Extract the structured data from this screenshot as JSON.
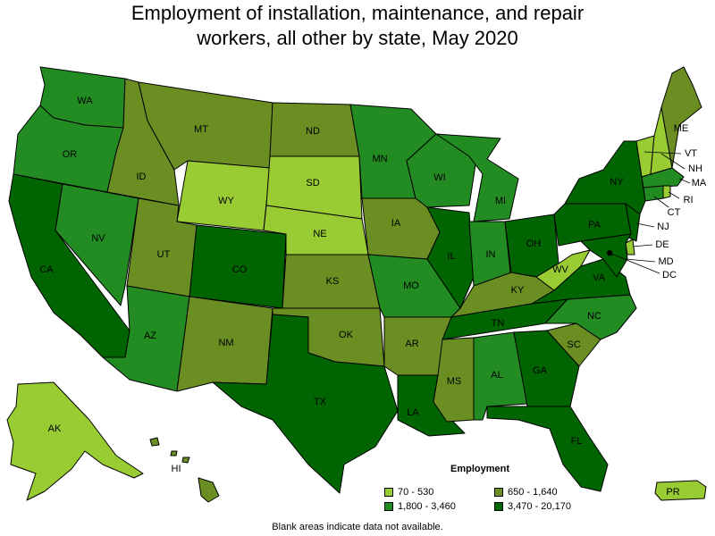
{
  "title_line1": "Employment of installation, maintenance, and repair",
  "title_line2": "workers, all other by state, May 2020",
  "legend": {
    "title": "Employment",
    "bins": [
      {
        "label": "70 - 530",
        "color": "#99cc33"
      },
      {
        "label": "650 - 1,640",
        "color": "#6b8e23"
      },
      {
        "label": "1,800 - 3,460",
        "color": "#228b22"
      },
      {
        "label": "3,470 - 20,170",
        "color": "#006400"
      }
    ]
  },
  "footnote": "Blank areas indicate data not available.",
  "states": [
    {
      "code": "WA",
      "bin": 2
    },
    {
      "code": "OR",
      "bin": 2
    },
    {
      "code": "CA",
      "bin": 3
    },
    {
      "code": "ID",
      "bin": 1
    },
    {
      "code": "NV",
      "bin": 2
    },
    {
      "code": "MT",
      "bin": 1
    },
    {
      "code": "WY",
      "bin": 0
    },
    {
      "code": "UT",
      "bin": 1
    },
    {
      "code": "AZ",
      "bin": 2
    },
    {
      "code": "CO",
      "bin": 3
    },
    {
      "code": "NM",
      "bin": 1
    },
    {
      "code": "ND",
      "bin": 1
    },
    {
      "code": "SD",
      "bin": 0
    },
    {
      "code": "NE",
      "bin": 0
    },
    {
      "code": "KS",
      "bin": 1
    },
    {
      "code": "OK",
      "bin": 1
    },
    {
      "code": "TX",
      "bin": 3
    },
    {
      "code": "MN",
      "bin": 2
    },
    {
      "code": "IA",
      "bin": 1
    },
    {
      "code": "MO",
      "bin": 2
    },
    {
      "code": "AR",
      "bin": 1
    },
    {
      "code": "LA",
      "bin": 3
    },
    {
      "code": "WI",
      "bin": 2
    },
    {
      "code": "IL",
      "bin": 3
    },
    {
      "code": "MI",
      "bin": 2
    },
    {
      "code": "IN",
      "bin": 2
    },
    {
      "code": "OH",
      "bin": 3
    },
    {
      "code": "KY",
      "bin": 1
    },
    {
      "code": "TN",
      "bin": 3
    },
    {
      "code": "MS",
      "bin": 1
    },
    {
      "code": "AL",
      "bin": 2
    },
    {
      "code": "GA",
      "bin": 3
    },
    {
      "code": "FL",
      "bin": 3
    },
    {
      "code": "SC",
      "bin": 1
    },
    {
      "code": "NC",
      "bin": 2
    },
    {
      "code": "VA",
      "bin": 3
    },
    {
      "code": "WV",
      "bin": 0
    },
    {
      "code": "PA",
      "bin": 3
    },
    {
      "code": "NY",
      "bin": 3
    },
    {
      "code": "VT",
      "bin": 0
    },
    {
      "code": "NH",
      "bin": 0
    },
    {
      "code": "ME",
      "bin": 1
    },
    {
      "code": "MA",
      "bin": 2
    },
    {
      "code": "RI",
      "bin": 0
    },
    {
      "code": "CT",
      "bin": 2
    },
    {
      "code": "NJ",
      "bin": 3
    },
    {
      "code": "DE",
      "bin": 0
    },
    {
      "code": "MD",
      "bin": 3
    },
    {
      "code": "DC",
      "bin": 3
    },
    {
      "code": "AK",
      "bin": 0
    },
    {
      "code": "HI",
      "bin": 1
    },
    {
      "code": "PR",
      "bin": 0
    }
  ]
}
